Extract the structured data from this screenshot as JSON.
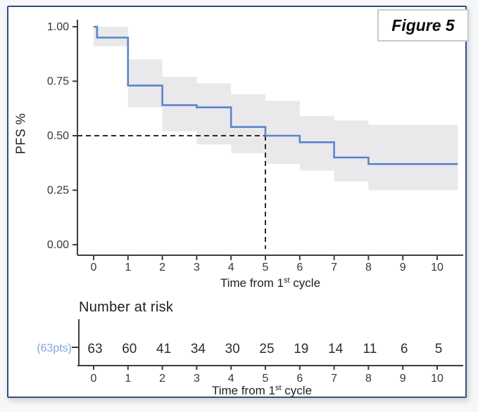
{
  "figure": {
    "label": "Figure 5"
  },
  "colors": {
    "curve_blue": "#5c83c9",
    "ci_band_gray": "#e9e9ec",
    "group_label_blue": "#84a5d8",
    "axis_dark": "#3d3d3d",
    "dashed_line": "#2b2b2b",
    "tick_text": "#363636",
    "frame_navy": "#33517e"
  },
  "chart_data": {
    "type": "line",
    "subtype": "kaplan-meier-step",
    "title": "",
    "figure_label": "Figure 5",
    "ylabel": "PFS %",
    "xlabel": "Time from 1st cycle",
    "xlabel_parts": {
      "prefix": "Time from 1",
      "sup": "st",
      "suffix": " cycle"
    },
    "xlim": [
      0,
      10.6
    ],
    "ylim": [
      0.0,
      1.0
    ],
    "grid": false,
    "legend_position": "none",
    "y_ticks": [
      {
        "v": 1.0,
        "label": "1.00"
      },
      {
        "v": 0.75,
        "label": "0.75"
      },
      {
        "v": 0.5,
        "label": "0.50"
      },
      {
        "v": 0.25,
        "label": "0.25"
      },
      {
        "v": 0.0,
        "label": "0.00"
      }
    ],
    "x_ticks": [
      {
        "v": 0,
        "label": "0"
      },
      {
        "v": 1,
        "label": "1"
      },
      {
        "v": 2,
        "label": "2"
      },
      {
        "v": 3,
        "label": "3"
      },
      {
        "v": 4,
        "label": "4"
      },
      {
        "v": 5,
        "label": "5"
      },
      {
        "v": 6,
        "label": "6"
      },
      {
        "v": 7,
        "label": "7"
      },
      {
        "v": 8,
        "label": "8"
      },
      {
        "v": 9,
        "label": "9"
      },
      {
        "v": 10,
        "label": "10"
      }
    ],
    "km_steps": [
      {
        "t": 0.0,
        "s": 1.0
      },
      {
        "t": 0.1,
        "s": 0.95
      },
      {
        "t": 1.0,
        "s": 0.73
      },
      {
        "t": 2.0,
        "s": 0.64
      },
      {
        "t": 3.0,
        "s": 0.63
      },
      {
        "t": 4.0,
        "s": 0.54
      },
      {
        "t": 5.0,
        "s": 0.5
      },
      {
        "t": 6.0,
        "s": 0.47
      },
      {
        "t": 7.0,
        "s": 0.4
      },
      {
        "t": 8.0,
        "s": 0.37
      }
    ],
    "curve_end_t": 10.6,
    "ci_band": [
      {
        "t0": 0,
        "t1": 1,
        "u": 1.0,
        "l": 0.91
      },
      {
        "t0": 1,
        "t1": 2,
        "u": 0.85,
        "l": 0.63
      },
      {
        "t0": 2,
        "t1": 3,
        "u": 0.77,
        "l": 0.52
      },
      {
        "t0": 3,
        "t1": 4,
        "u": 0.74,
        "l": 0.46
      },
      {
        "t0": 4,
        "t1": 5,
        "u": 0.69,
        "l": 0.42
      },
      {
        "t0": 5,
        "t1": 6,
        "u": 0.66,
        "l": 0.37
      },
      {
        "t0": 6,
        "t1": 7,
        "u": 0.59,
        "l": 0.34
      },
      {
        "t0": 7,
        "t1": 8,
        "u": 0.57,
        "l": 0.29
      },
      {
        "t0": 8,
        "t1": 10.6,
        "u": 0.55,
        "l": 0.25
      }
    ],
    "median_marker": {
      "t": 5,
      "s": 0.5
    },
    "risk_table": {
      "heading": "Number at risk",
      "group_label": "(63pts)",
      "times": [
        0,
        1,
        2,
        3,
        4,
        5,
        6,
        7,
        8,
        9,
        10
      ],
      "counts": [
        63,
        60,
        41,
        34,
        30,
        25,
        19,
        14,
        11,
        6,
        5
      ],
      "xlabel_parts": {
        "prefix": "Time from 1",
        "sup": "st",
        "suffix": " cycle"
      }
    }
  }
}
